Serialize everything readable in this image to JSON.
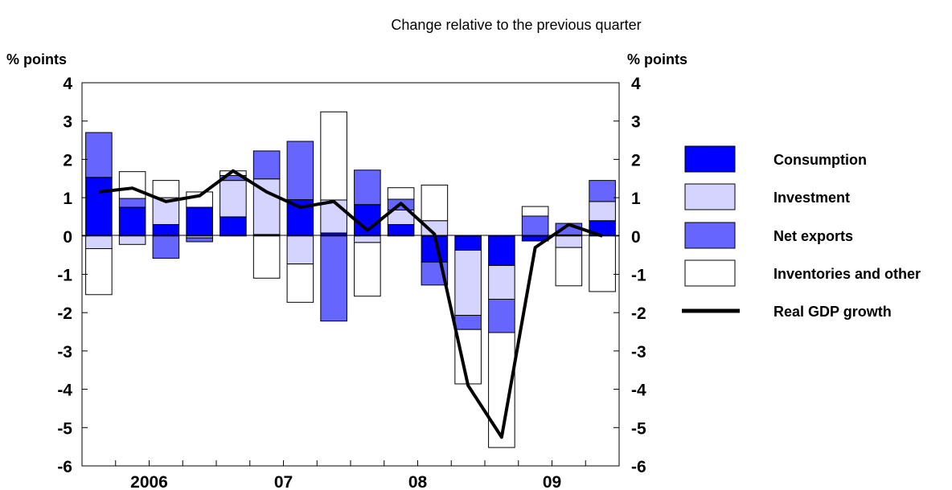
{
  "chart_data": {
    "type": "bar",
    "subtitle": "Change relative to the previous quarter",
    "ylabel_left": "% points",
    "ylabel_right": "% points",
    "ylim": [
      -6,
      4
    ],
    "yticks": [
      4,
      3,
      2,
      1,
      0,
      -1,
      -2,
      -3,
      -4,
      -5,
      -6
    ],
    "x_labels": [
      {
        "label": "2006",
        "center_index": 1.5
      },
      {
        "label": "07",
        "center_index": 5.5
      },
      {
        "label": "08",
        "center_index": 9.5
      },
      {
        "label": "09",
        "center_index": 13.5
      }
    ],
    "categories": [
      "2006Q1",
      "2006Q2",
      "2006Q3",
      "2006Q4",
      "2007Q1",
      "2007Q2",
      "2007Q3",
      "2007Q4",
      "2008Q1",
      "2008Q2",
      "2008Q3",
      "2008Q4",
      "2009Q1",
      "2009Q2",
      "2009Q3",
      "2009Q4"
    ],
    "series": [
      {
        "name": "Consumption",
        "color": "#0000ff",
        "kind": "bar",
        "values": [
          1.53,
          0.75,
          0.3,
          0.75,
          0.5,
          0.04,
          0.95,
          0.08,
          0.82,
          0.3,
          -0.68,
          -0.37,
          -0.77,
          -0.13,
          0.03,
          0.4
        ]
      },
      {
        "name": "Investment",
        "color": "#d4d4ff",
        "kind": "bar",
        "values": [
          -0.33,
          -0.22,
          0.7,
          -0.05,
          0.95,
          1.45,
          -0.73,
          0.86,
          -0.17,
          0.38,
          0.4,
          -1.7,
          -0.88,
          0.0,
          -0.3,
          0.5
        ]
      },
      {
        "name": "Net exports",
        "color": "#6666ff",
        "kind": "bar",
        "values": [
          1.17,
          0.23,
          -0.58,
          -0.1,
          0.13,
          0.73,
          1.52,
          -2.22,
          0.9,
          0.28,
          -0.6,
          -0.37,
          -0.87,
          0.52,
          0.3,
          0.55
        ]
      },
      {
        "name": "Inventories and other",
        "color": "#ffffff",
        "kind": "bar",
        "values": [
          -1.2,
          0.7,
          0.45,
          0.4,
          0.12,
          -1.1,
          -1.0,
          2.3,
          -1.4,
          0.3,
          0.93,
          -1.42,
          -3.0,
          0.25,
          -1.0,
          -1.45
        ]
      },
      {
        "name": "Real GDP growth",
        "color": "#000000",
        "kind": "line",
        "values": [
          1.15,
          1.25,
          0.9,
          1.05,
          1.7,
          1.15,
          0.75,
          0.9,
          0.15,
          0.85,
          0.05,
          -3.9,
          -5.25,
          -0.3,
          0.3,
          0.0
        ]
      }
    ]
  }
}
